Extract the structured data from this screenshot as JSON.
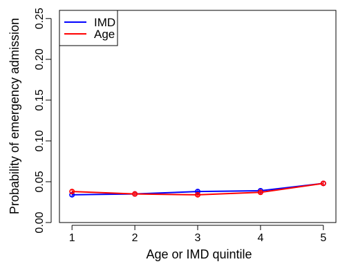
{
  "chart_data": {
    "type": "line",
    "xlabel": "Age or IMD quintile",
    "ylabel": "Probability of emergency admission",
    "x": [
      1,
      2,
      3,
      4,
      5
    ],
    "xlim": [
      0.8,
      5.2
    ],
    "ylim": [
      0,
      0.26
    ],
    "x_ticks": [
      "1",
      "2",
      "3",
      "4",
      "5"
    ],
    "y_ticks": [
      "0.00",
      "0.05",
      "0.10",
      "0.15",
      "0.20",
      "0.25"
    ],
    "grid": false,
    "legend_position": "top-left",
    "series": [
      {
        "name": "IMD",
        "color": "#0000ff",
        "values": [
          0.034,
          0.035,
          0.038,
          0.039,
          0.048
        ],
        "ci_low": [
          0.032,
          0.033,
          0.036,
          0.037,
          0.046
        ],
        "ci_high": [
          0.036,
          0.037,
          0.04,
          0.041,
          0.05
        ]
      },
      {
        "name": "Age",
        "color": "#ff0000",
        "values": [
          0.038,
          0.035,
          0.034,
          0.037,
          0.048
        ],
        "ci_low": [
          0.036,
          0.033,
          0.032,
          0.035,
          0.046
        ],
        "ci_high": [
          0.04,
          0.037,
          0.036,
          0.039,
          0.05
        ]
      }
    ]
  }
}
